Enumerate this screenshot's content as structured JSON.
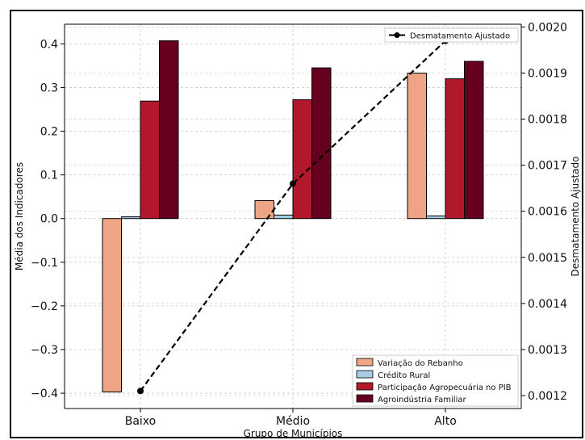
{
  "chart_data": {
    "type": "bar",
    "xlabel": "Grupo de Municípios",
    "ylabel": "Média dos Indicadores",
    "y2label": "Desmatamento Ajustado",
    "categories": [
      "Baixo",
      "Médio",
      "Alto"
    ],
    "ylim": [
      -0.435,
      0.445
    ],
    "y2lim": [
      0.001172,
      0.002006
    ],
    "yticks": [
      "0.4",
      "0.3",
      "0.2",
      "0.1",
      "0.0",
      "−0.1",
      "−0.2",
      "−0.3",
      "−0.4"
    ],
    "y2ticks": [
      "0.0020",
      "0.0019",
      "0.0018",
      "0.0017",
      "0.0016",
      "0.0015",
      "0.0014",
      "0.0013",
      "0.0012"
    ],
    "grid": true,
    "series": [
      {
        "name": "Variação do Rebanho",
        "color": "#f0a486",
        "values": [
          -0.397,
          0.041,
          0.333
        ]
      },
      {
        "name": "Crédito Rural",
        "color": "#a6cde4",
        "values": [
          0.004,
          0.008,
          0.006
        ]
      },
      {
        "name": "Participação Agropecuária no PIB",
        "color": "#b2182b",
        "values": [
          0.269,
          0.272,
          0.32
        ]
      },
      {
        "name": "Agroindústria Familiar",
        "color": "#67001f",
        "values": [
          0.407,
          0.345,
          0.36
        ]
      }
    ],
    "line_series": {
      "name": "Desmatamento Ajustado",
      "color": "#000000",
      "values": [
        0.00121,
        0.00166,
        0.00197
      ]
    },
    "legend_bars_location": "lower-right",
    "legend_line_location": "upper-right"
  }
}
